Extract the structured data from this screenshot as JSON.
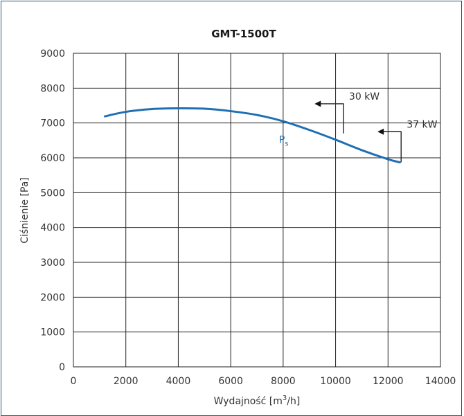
{
  "chart_data": {
    "type": "line",
    "title": "GMT-1500T",
    "xlabel": "Wydajność [m³/h]",
    "xlabel_main": "Wydajność [m",
    "xlabel_sup": "3",
    "xlabel_tail": "/h]",
    "ylabel": "Ciśnienie [Pa]",
    "xlim": [
      0,
      14000
    ],
    "ylim": [
      0,
      9000
    ],
    "xticks": [
      "0",
      "2000",
      "4000",
      "6000",
      "8000",
      "10000",
      "12000",
      "14000"
    ],
    "yticks": [
      "0",
      "1000",
      "2000",
      "3000",
      "4000",
      "5000",
      "6000",
      "7000",
      "8000",
      "9000"
    ],
    "grid": true,
    "series": [
      {
        "name": "Ps",
        "label_main": "P",
        "label_sub": "s",
        "color": "#1f6fb5",
        "x": [
          1200,
          2000,
          3000,
          4000,
          5000,
          6000,
          7000,
          8000,
          9000,
          10000,
          11000,
          12000,
          12450
        ],
        "y": [
          7190,
          7320,
          7400,
          7420,
          7410,
          7340,
          7230,
          7050,
          6800,
          6520,
          6220,
          5960,
          5870
        ]
      }
    ],
    "annotations": [
      {
        "text": "30 kW",
        "x": 10300,
        "y": 6700,
        "top": 7550,
        "arrow_to_x": 9200
      },
      {
        "text": "37 kW",
        "x": 12500,
        "y": 5870,
        "top": 6750,
        "arrow_to_x": 11600
      }
    ]
  }
}
